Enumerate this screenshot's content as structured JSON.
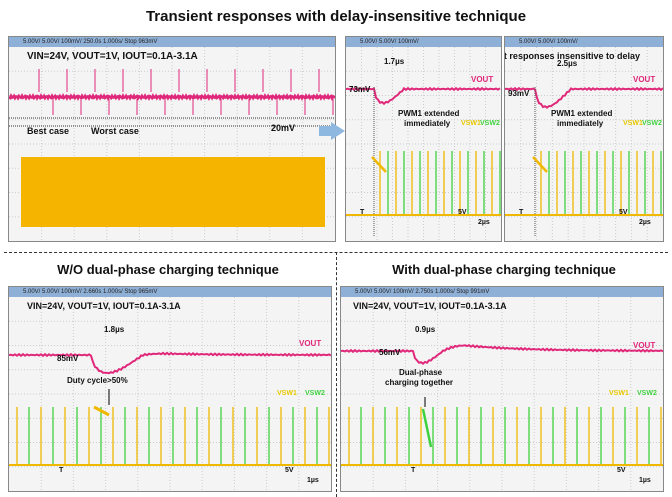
{
  "title": "Transient responses with delay-insensitive technique",
  "subtitle_left": "W/O dual-phase charging technique",
  "subtitle_right": "With dual-phase charging technique",
  "colors": {
    "vout": "#e0287a",
    "sw1": "#f0b800",
    "sw2": "#3fd23f",
    "screen": "#f4f4f4",
    "bar": "#8fb0d6"
  },
  "panel_a": {
    "status": "5.00V/  5.00V/       100mV/   250.0s  1.000s/  Stop   963mV",
    "conditions": "VIN=24V, VOUT=1V, IOUT=0.1A-3.1A",
    "best": "Best case",
    "worst": "Worst case",
    "ripple": "20mV"
  },
  "panel_b": {
    "status": "5.00V/  5.00V/       100mV/",
    "caption": "Transient responses insensitive to delay",
    "time": "1.7µs",
    "drop": "73mV",
    "pwm": "PWM1 extended",
    "pwm2": "immediately",
    "vout": "VOUT",
    "sw1": "VSW1",
    "sw2": "VSW2",
    "T": "T",
    "scale_v": "5V",
    "scale_t": "2µs"
  },
  "panel_c": {
    "status": "5.00V/  5.00V/       100mV/",
    "time": "2.5µs",
    "drop": "93mV",
    "pwm": "PWM1 extended",
    "pwm2": "immediately",
    "vout": "VOUT",
    "sw1": "VSW1",
    "sw2": "VSW2",
    "T": "T",
    "scale_v": "5V",
    "scale_t": "2µs"
  },
  "panel_d": {
    "status": "5.00V/  5.00V/       100mV/   2.660s  1.000s/  Stop   965mV",
    "conditions": "VIN=24V, VOUT=1V, IOUT=0.1A-3.1A",
    "time": "1.8µs",
    "drop": "85mV",
    "note": "Duty cycle>50%",
    "vout": "VOUT",
    "sw1": "VSW1",
    "sw2": "VSW2",
    "T": "T",
    "scale_v": "5V",
    "scale_t": "1µs"
  },
  "panel_e": {
    "status": "5.00V/  5.00V/       100mV/   2.750s  1.000s/  Stop   991mV",
    "conditions": "VIN=24V, VOUT=1V, IOUT=0.1A-3.1A",
    "time": "0.9µs",
    "drop": "56mV",
    "note": "Dual-phase",
    "note2": "charging together",
    "vout": "VOUT",
    "sw1": "VSW1",
    "sw2": "VSW2",
    "T": "T",
    "scale_v": "5V",
    "scale_t": "1µs"
  }
}
